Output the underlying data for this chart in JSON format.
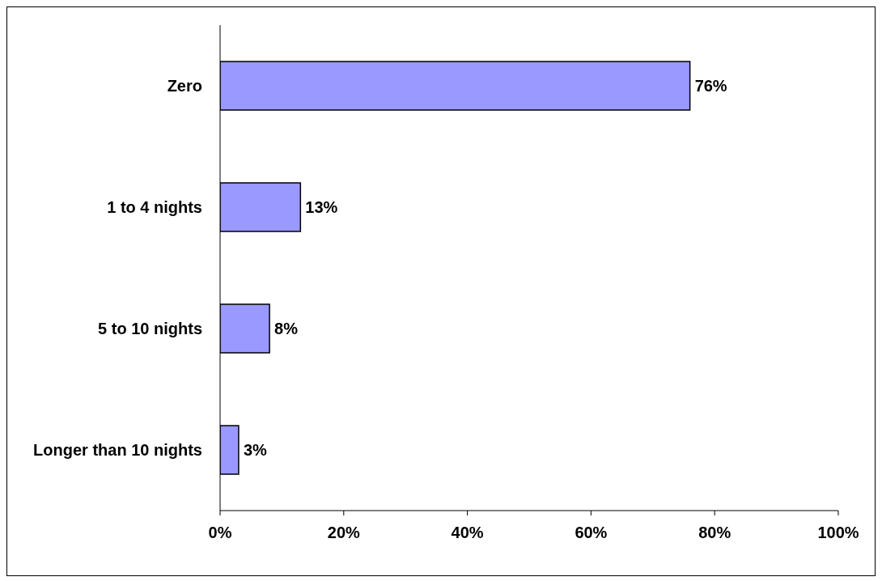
{
  "chart_data": {
    "type": "bar",
    "orientation": "horizontal",
    "categories": [
      "Zero",
      "1 to 4 nights",
      "5 to 10 nights",
      "Longer than 10 nights"
    ],
    "values": [
      76,
      13,
      8,
      3
    ],
    "value_labels": [
      "76%",
      "13%",
      "8%",
      "3%"
    ],
    "color": "#9999ff",
    "xlim": [
      0,
      100
    ],
    "xticks": [
      {
        "value": 0,
        "label": "0%"
      },
      {
        "value": 20,
        "label": "20%"
      },
      {
        "value": 40,
        "label": "40%"
      },
      {
        "value": 60,
        "label": "60%"
      },
      {
        "value": 80,
        "label": "80%"
      },
      {
        "value": 100,
        "label": "100%"
      }
    ],
    "grid": false,
    "legend": false
  }
}
